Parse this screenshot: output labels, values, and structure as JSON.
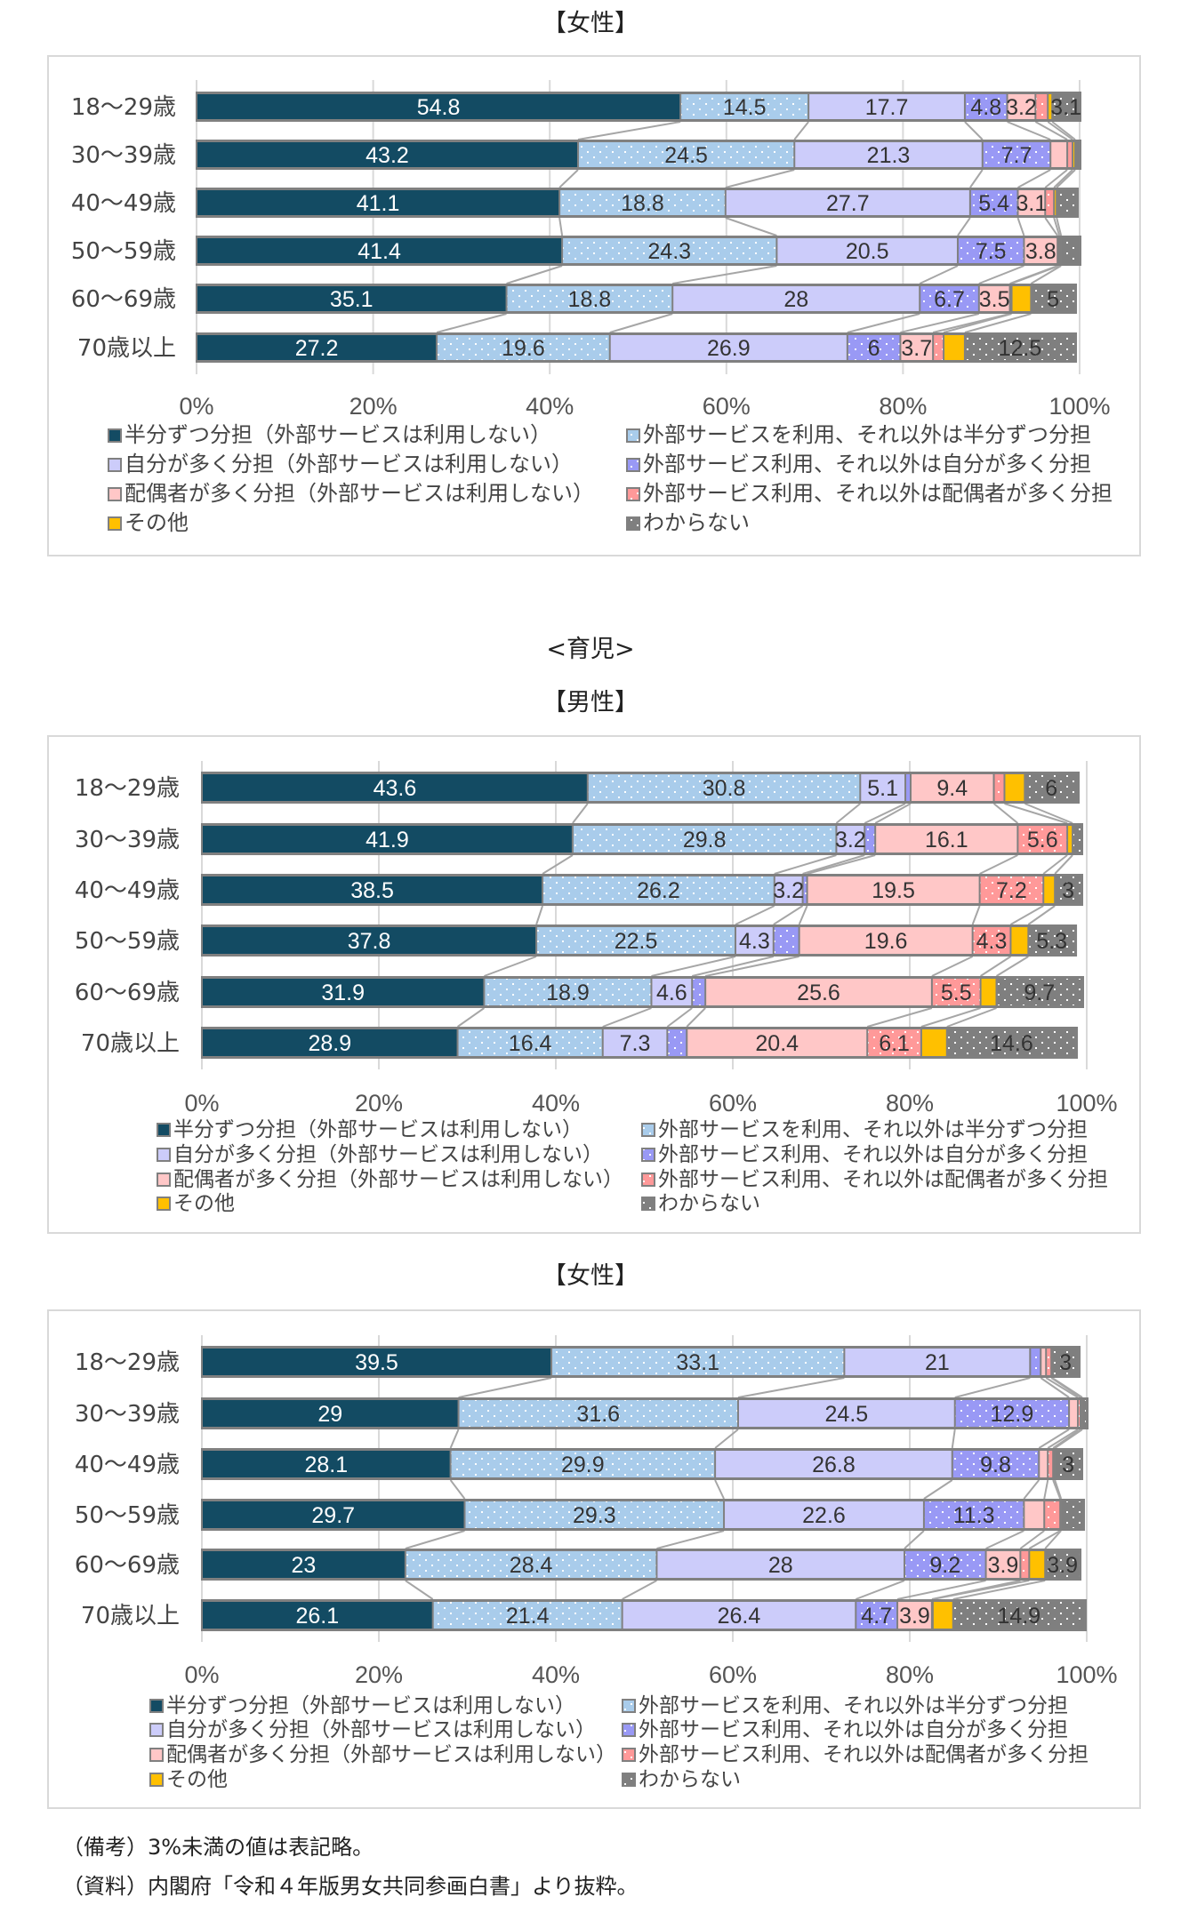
{
  "section_title": "<育児>",
  "notes": [
    "（備考）3%未満の値は表記略。",
    "（資料）内閣府「令和４年版男女共同参画白書」より抜粋。"
  ],
  "series_colors": [
    "#134B63",
    "#A9CCEB",
    "#CCCCFA",
    "#9999F5",
    "#FFC7C7",
    "#FF9999",
    "#FFC000",
    "#7F7F7F"
  ],
  "label_threshold": 3,
  "chart_data": [
    {
      "type": "bar",
      "stacked": true,
      "orientation": "horizontal",
      "title": "【女性】",
      "categories": [
        "18～29歳",
        "30～39歳",
        "40～49歳",
        "50～59歳",
        "60～69歳",
        "70歳以上"
      ],
      "xlim": [
        0,
        100
      ],
      "xticks": [
        "0%",
        "20%",
        "40%",
        "60%",
        "80%",
        "100%"
      ],
      "legend_placement": "bottom",
      "series": [
        {
          "name": "半分ずつ分担（外部サービスは利用しない）",
          "values": [
            54.8,
            43.2,
            41.1,
            41.4,
            35.1,
            27.2
          ]
        },
        {
          "name": "外部サービスを利用、それ以外は半分ずつ分担",
          "values": [
            14.5,
            24.5,
            18.8,
            24.3,
            18.8,
            19.6
          ]
        },
        {
          "name": "自分が多く分担（外部サービスは利用しない）",
          "values": [
            17.7,
            21.3,
            27.7,
            20.5,
            28,
            26.9
          ]
        },
        {
          "name": "外部サービス利用、それ以外は自分が多く分担",
          "values": [
            4.8,
            7.7,
            5.4,
            7.5,
            6.7,
            6
          ]
        },
        {
          "name": "配偶者が多く分担（外部サービスは利用しない）",
          "values": [
            3.2,
            1.9,
            3.1,
            3.8,
            3.5,
            3.7
          ]
        },
        {
          "name": "外部サービス利用、それ以外は配偶者が多く分担",
          "values": [
            1.4,
            0.6,
            1.0,
            0.2,
            0.2,
            1.2
          ]
        },
        {
          "name": "その他",
          "values": [
            0.5,
            0.3,
            0.3,
            0.2,
            2.2,
            2.4
          ]
        },
        {
          "name": "わからない",
          "values": [
            3.1,
            0.5,
            2.3,
            2.1,
            5,
            12.5
          ]
        }
      ]
    },
    {
      "type": "bar",
      "stacked": true,
      "orientation": "horizontal",
      "title": "【男性】",
      "categories": [
        "18～29歳",
        "30～39歳",
        "40～49歳",
        "50～59歳",
        "60～69歳",
        "70歳以上"
      ],
      "xlim": [
        0,
        100
      ],
      "xticks": [
        "0%",
        "20%",
        "40%",
        "60%",
        "80%",
        "100%"
      ],
      "legend_placement": "bottom",
      "series": [
        {
          "name": "半分ずつ分担（外部サービスは利用しない）",
          "values": [
            43.6,
            41.9,
            38.5,
            37.8,
            31.9,
            28.9
          ]
        },
        {
          "name": "外部サービスを利用、それ以外は半分ずつ分担",
          "values": [
            30.8,
            29.8,
            26.2,
            22.5,
            18.9,
            16.4
          ]
        },
        {
          "name": "自分が多く分担（外部サービスは利用しない）",
          "values": [
            5.1,
            3.2,
            3.2,
            4.3,
            4.6,
            7.3
          ]
        },
        {
          "name": "外部サービス利用、それ以外は自分が多く分担",
          "values": [
            0.6,
            1.2,
            0.5,
            2.9,
            1.5,
            2.2
          ]
        },
        {
          "name": "配偶者が多く分担（外部サービスは利用しない）",
          "values": [
            9.4,
            16.1,
            19.5,
            19.6,
            25.6,
            20.4
          ]
        },
        {
          "name": "外部サービス利用、それ以外は配偶者が多く分担",
          "values": [
            1.2,
            5.6,
            7.2,
            4.3,
            5.5,
            6.1
          ]
        },
        {
          "name": "その他",
          "values": [
            2.3,
            0.6,
            1.3,
            2.0,
            1.8,
            2.9
          ]
        },
        {
          "name": "わからない",
          "values": [
            6.0,
            1.0,
            3.0,
            5.3,
            9.7,
            14.6
          ]
        }
      ]
    },
    {
      "type": "bar",
      "stacked": true,
      "orientation": "horizontal",
      "title": "【女性】",
      "categories": [
        "18～29歳",
        "30～39歳",
        "40～49歳",
        "50～59歳",
        "60～69歳",
        "70歳以上"
      ],
      "xlim": [
        0,
        100
      ],
      "xticks": [
        "0%",
        "20%",
        "40%",
        "60%",
        "80%",
        "100%"
      ],
      "legend_placement": "bottom",
      "series": [
        {
          "name": "半分ずつ分担（外部サービスは利用しない）",
          "values": [
            39.5,
            29,
            28.1,
            29.7,
            23,
            26.1
          ]
        },
        {
          "name": "外部サービスを利用、それ以外は半分ずつ分担",
          "values": [
            33.1,
            31.6,
            29.9,
            29.3,
            28.4,
            21.4
          ]
        },
        {
          "name": "自分が多く分担（外部サービスは利用しない）",
          "values": [
            21,
            24.5,
            26.8,
            22.6,
            28,
            26.4
          ]
        },
        {
          "name": "外部サービス利用、それ以外は自分が多く分担",
          "values": [
            1.2,
            12.9,
            9.8,
            11.3,
            9.2,
            4.7
          ]
        },
        {
          "name": "配偶者が多く分担（外部サービスは利用しない）",
          "values": [
            0.6,
            1.0,
            1.0,
            2.3,
            3.9,
            3.9
          ]
        },
        {
          "name": "外部サービス利用、それ以外は配偶者が多く分担",
          "values": [
            0.6,
            0.3,
            0.6,
            1.8,
            1.0,
            0.1
          ]
        },
        {
          "name": "その他",
          "values": [
            0.1,
            0.2,
            0.2,
            0.1,
            1.8,
            2.3
          ]
        },
        {
          "name": "わからない",
          "values": [
            3.0,
            0.5,
            3.0,
            2.5,
            3.9,
            14.9
          ]
        }
      ]
    }
  ]
}
